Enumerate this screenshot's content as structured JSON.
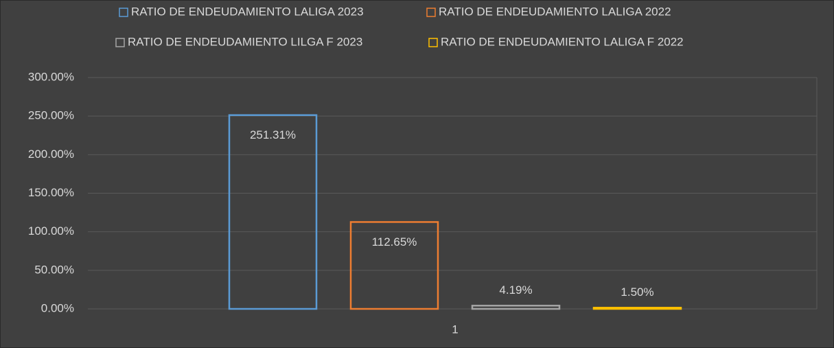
{
  "chart_data": {
    "type": "bar",
    "categories": [
      "1"
    ],
    "series": [
      {
        "name": "RATIO DE ENDEUDAMIENTO LALIGA 2023",
        "color": "#5b9bd5",
        "values": [
          251.31
        ],
        "value_labels": [
          "251.31%"
        ]
      },
      {
        "name": "RATIO DE ENDEUDAMIENTO LALIGA 2022",
        "color": "#ed7d31",
        "values": [
          112.65
        ],
        "value_labels": [
          "112.65%"
        ]
      },
      {
        "name": "RATIO DE ENDEUDAMIENTO LILGA F 2023",
        "color": "#a5a5a5",
        "values": [
          4.19
        ],
        "value_labels": [
          "4.19%"
        ]
      },
      {
        "name": "RATIO DE ENDEUDAMIENTO LALIGA F 2022",
        "color": "#ffc000",
        "values": [
          1.5
        ],
        "value_labels": [
          "1.50%"
        ]
      }
    ],
    "ylim": [
      0,
      300
    ],
    "yticks": [
      {
        "value": 0,
        "label": "0.00%"
      },
      {
        "value": 50,
        "label": "50.00%"
      },
      {
        "value": 100,
        "label": "100.00%"
      },
      {
        "value": 150,
        "label": "150.00%"
      },
      {
        "value": 200,
        "label": "200.00%"
      },
      {
        "value": 250,
        "label": "250.00%"
      },
      {
        "value": 300,
        "label": "300.00%"
      }
    ],
    "grid": true,
    "legend": "top"
  }
}
